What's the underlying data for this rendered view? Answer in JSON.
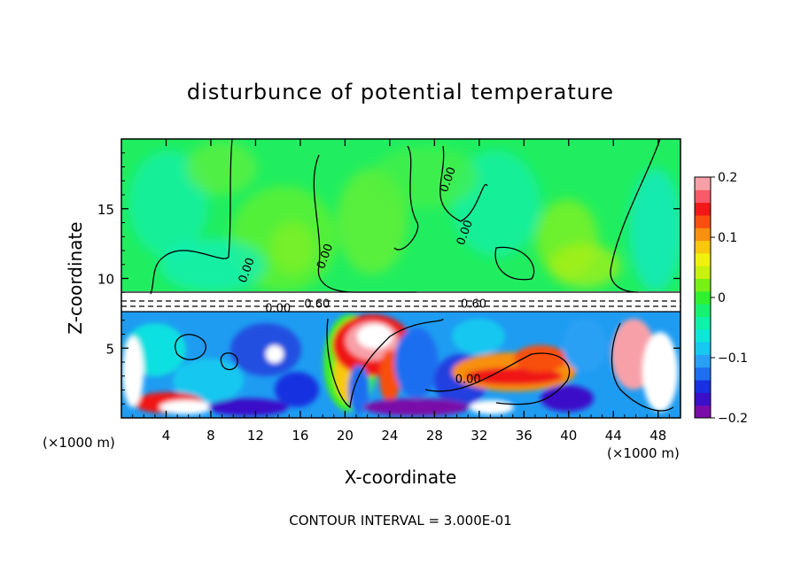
{
  "chart_data": {
    "type": "heatmap",
    "title": "disturbunce of potential temperature",
    "xlabel": "X-coordinate",
    "ylabel": "Z-coordinate",
    "x_unit": "(×1000 m)",
    "x_unit_right": "(×1000 m)",
    "xlim": [
      0,
      50
    ],
    "ylim": [
      0,
      20
    ],
    "x_ticks": [
      4,
      8,
      12,
      16,
      20,
      24,
      28,
      32,
      36,
      40,
      44,
      48
    ],
    "y_ticks": [
      5,
      10,
      15
    ],
    "colorbar": {
      "range": [
        -0.2,
        0.2
      ],
      "tick_values": [
        0.2,
        0.1,
        0,
        -0.1,
        -0.2
      ],
      "tick_labels": [
        "0.2",
        "0.1",
        "0",
        "−0.1",
        "−0.2"
      ],
      "colors": [
        "#7a0da8",
        "#3a0fc8",
        "#1830e0",
        "#1e6ef0",
        "#2aa0f5",
        "#18c8f0",
        "#10e6d8",
        "#10f0a8",
        "#18f070",
        "#30f030",
        "#78f018",
        "#c8f010",
        "#f0f010",
        "#f8c810",
        "#f89010",
        "#f85010",
        "#f01818",
        "#f85a6a",
        "#f8a0a8"
      ]
    },
    "contour_labels": [
      {
        "text": "0.00",
        "x": 11.5,
        "y": 10.5
      },
      {
        "text": "0.00",
        "x": 18.5,
        "y": 11.5
      },
      {
        "text": "0.00",
        "x": 29.5,
        "y": 17.0
      },
      {
        "text": "0.00",
        "x": 31.0,
        "y": 13.2
      },
      {
        "text": "0.60",
        "x": 17.5,
        "y": 7.9
      },
      {
        "text": "0.60",
        "x": 31.5,
        "y": 7.9
      },
      {
        "text": "0.00",
        "x": 14.0,
        "y": 7.6
      },
      {
        "text": "0.00",
        "x": 31.0,
        "y": 2.5
      }
    ],
    "footnote": "CONTOUR INTERVAL = 3.000E-01"
  }
}
